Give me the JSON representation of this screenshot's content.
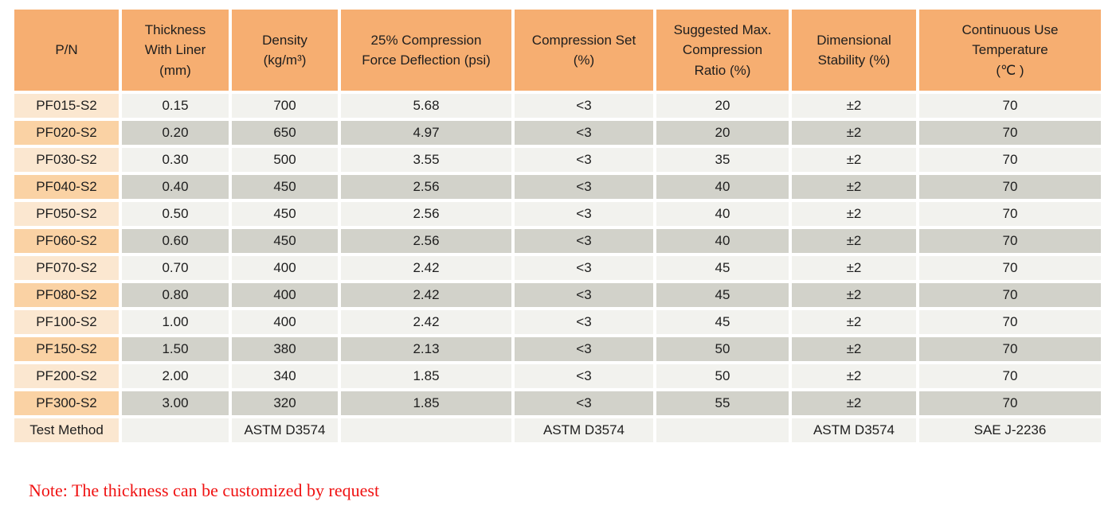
{
  "table": {
    "columns": [
      "P/N",
      "Thickness\nWith Liner\n(mm)",
      "Density\n(kg/m³)",
      "25% Compression\nForce Deflection (psi)",
      "Compression Set\n(%)",
      "Suggested Max.\nCompression\nRatio (%)",
      "Dimensional\nStability (%)",
      "Continuous Use\nTemperature\n(℃ )"
    ],
    "rows": [
      {
        "pn": "PF015-S2",
        "values": [
          "0.15",
          "700",
          "5.68",
          "<3",
          "20",
          "±2",
          "70"
        ]
      },
      {
        "pn": "PF020-S2",
        "values": [
          "0.20",
          "650",
          "4.97",
          "<3",
          "20",
          "±2",
          "70"
        ]
      },
      {
        "pn": "PF030-S2",
        "values": [
          "0.30",
          "500",
          "3.55",
          "<3",
          "35",
          "±2",
          "70"
        ]
      },
      {
        "pn": "PF040-S2",
        "values": [
          "0.40",
          "450",
          "2.56",
          "<3",
          "40",
          "±2",
          "70"
        ]
      },
      {
        "pn": "PF050-S2",
        "values": [
          "0.50",
          "450",
          "2.56",
          "<3",
          "40",
          "±2",
          "70"
        ]
      },
      {
        "pn": "PF060-S2",
        "values": [
          "0.60",
          "450",
          "2.56",
          "<3",
          "40",
          "±2",
          "70"
        ]
      },
      {
        "pn": "PF070-S2",
        "values": [
          "0.70",
          "400",
          "2.42",
          "<3",
          "45",
          "±2",
          "70"
        ]
      },
      {
        "pn": "PF080-S2",
        "values": [
          "0.80",
          "400",
          "2.42",
          "<3",
          "45",
          "±2",
          "70"
        ]
      },
      {
        "pn": "PF100-S2",
        "values": [
          "1.00",
          "400",
          "2.42",
          "<3",
          "45",
          "±2",
          "70"
        ]
      },
      {
        "pn": "PF150-S2",
        "values": [
          "1.50",
          "380",
          "2.13",
          "<3",
          "50",
          "±2",
          "70"
        ]
      },
      {
        "pn": "PF200-S2",
        "values": [
          "2.00",
          "340",
          "1.85",
          "<3",
          "50",
          "±2",
          "70"
        ]
      },
      {
        "pn": "PF300-S2",
        "values": [
          "3.00",
          "320",
          "1.85",
          "<3",
          "55",
          "±2",
          "70"
        ]
      },
      {
        "pn": "Test Method",
        "values": [
          "",
          "ASTM D3574",
          "",
          "ASTM D3574",
          "",
          "ASTM D3574",
          "SAE J-2236"
        ]
      }
    ]
  },
  "note": "Note: The thickness can be customized by request",
  "colors": {
    "header_bg": "#F6AE71",
    "pn_row_light": "#FBE7D0",
    "pn_row_dark": "#FAD2A4",
    "cell_light": "#F2F2EE",
    "cell_dark": "#D2D2CA",
    "note_red": "#F01212",
    "text": "#1E1E1E"
  }
}
